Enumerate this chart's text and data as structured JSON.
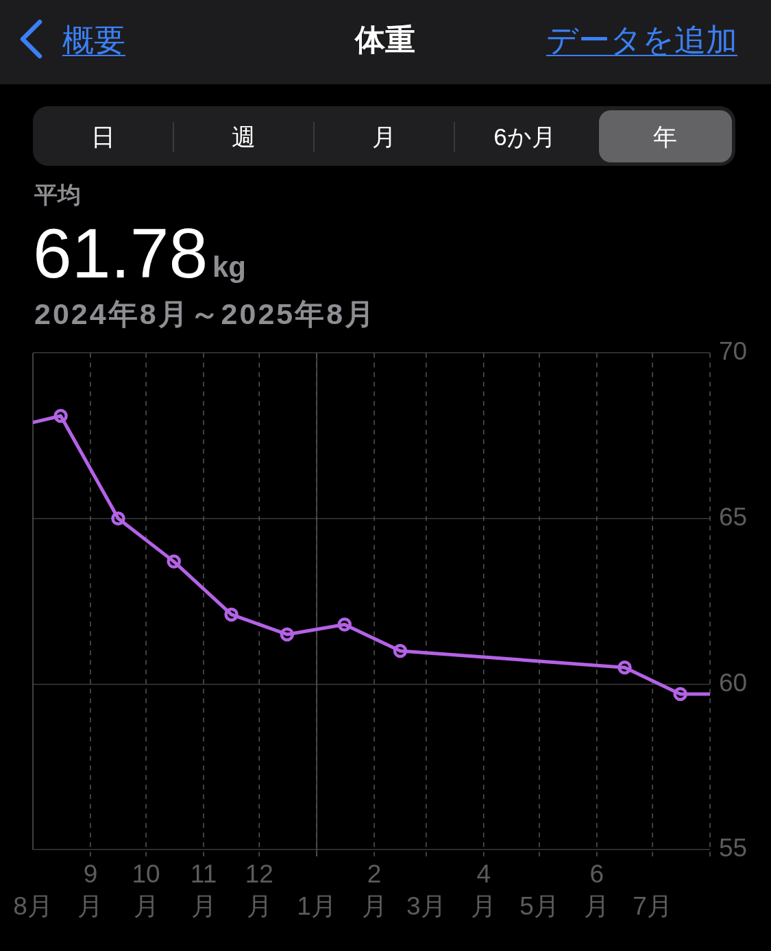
{
  "chart_data": {
    "type": "line",
    "title": "体重",
    "subtitle": "2024年8月～2025年8月",
    "annotations": [
      "概要",
      "データを追加",
      "日",
      "週",
      "月",
      "6か月",
      "年",
      "平均",
      "61.78",
      "kg"
    ],
    "series": [
      {
        "type": "line",
        "color": "#b462e6",
        "marker": "none",
        "x": [
          "2024-08-01",
          "2024-08-16",
          "2024-09-16",
          "2024-10-16",
          "2024-11-16",
          "2024-12-16",
          "2025-01-16",
          "2025-02-15",
          "2025-06-16",
          "2025-07-16",
          "2025-08-01"
        ],
        "values": [
          67.9,
          68.1,
          65.0,
          63.7,
          62.1,
          61.5,
          61.8,
          61.0,
          60.5,
          59.7,
          59.7
        ]
      },
      {
        "type": "scatter",
        "color": "#b462e6",
        "marker": "circle",
        "x": [
          "2024-08-16",
          "2024-09-16",
          "2024-10-16",
          "2024-11-16",
          "2024-12-16",
          "2025-01-16",
          "2025-02-15",
          "2025-06-16",
          "2025-07-16"
        ],
        "values": [
          68.1,
          65.0,
          63.7,
          62.1,
          61.5,
          61.8,
          61.0,
          60.5,
          59.7
        ]
      }
    ],
    "xlim": [
      "2024-08-01",
      "2025-08-01"
    ],
    "xticks": [
      {
        "value": "2024-08-01",
        "label": "8月"
      },
      {
        "value": "2024-09-01",
        "label": "9\n月"
      },
      {
        "value": "2024-10-01",
        "label": "10\n月"
      },
      {
        "value": "2024-11-01",
        "label": "11\n月"
      },
      {
        "value": "2024-12-01",
        "label": "12\n月"
      },
      {
        "value": "2025-01-01",
        "label": "1月"
      },
      {
        "value": "2025-02-01",
        "label": "2\n月"
      },
      {
        "value": "2025-03-01",
        "label": "3月"
      },
      {
        "value": "2025-04-01",
        "label": "4\n月"
      },
      {
        "value": "2025-05-01",
        "label": "5月"
      },
      {
        "value": "2025-06-01",
        "label": "6\n月"
      },
      {
        "value": "2025-07-01",
        "label": "7月"
      },
      {
        "value": "2025-08-01",
        "label": null
      }
    ],
    "ylim": [
      55,
      70
    ],
    "yticks": [
      55,
      60,
      65,
      70
    ],
    "ref_lines": [
      {
        "axis": "x",
        "value": "2025-01-01",
        "color": "#555557",
        "line_style": "solid"
      }
    ],
    "grid": true,
    "legend": false
  }
}
